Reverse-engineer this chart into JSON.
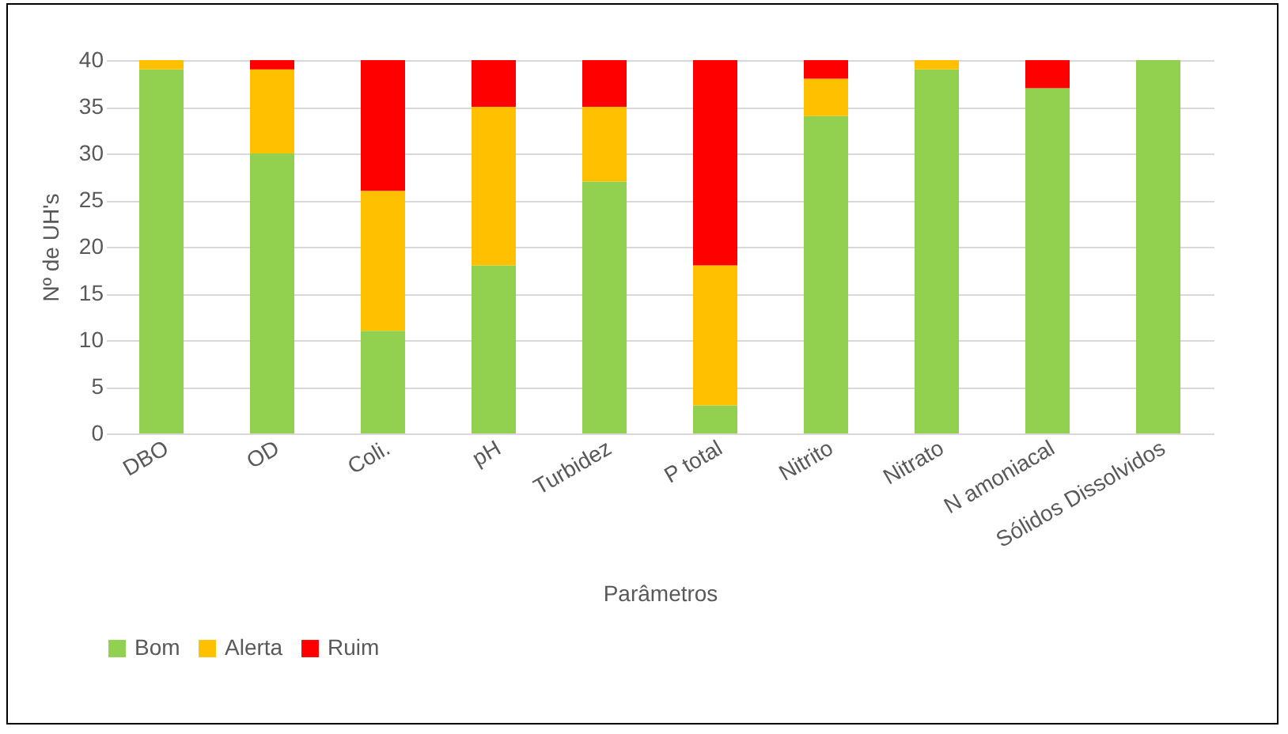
{
  "chart_data": {
    "type": "bar",
    "stacked": true,
    "xlabel": "Parâmetros",
    "ylabel": "Nº de  UH's",
    "categories": [
      "DBO",
      "OD",
      "Coli.",
      "pH",
      "Turbidez",
      "P total",
      "Nitrito",
      "Nitrato",
      "N amoniacal",
      "Sólidos Dissolvidos"
    ],
    "series": [
      {
        "name": "Bom",
        "color": "#92d050",
        "values": [
          39,
          30,
          11,
          18,
          27,
          3,
          34,
          39,
          37,
          40
        ]
      },
      {
        "name": "Alerta",
        "color": "#ffc000",
        "values": [
          1,
          9,
          15,
          17,
          8,
          15,
          4,
          1,
          0,
          0
        ]
      },
      {
        "name": "Ruim",
        "color": "#ff0000",
        "values": [
          0,
          1,
          14,
          5,
          5,
          22,
          2,
          0,
          3,
          0
        ]
      }
    ],
    "ylim": [
      0,
      40
    ],
    "yticks": [
      0,
      5,
      10,
      15,
      20,
      25,
      30,
      35,
      40
    ],
    "grid": "y",
    "legend": "bottom"
  }
}
